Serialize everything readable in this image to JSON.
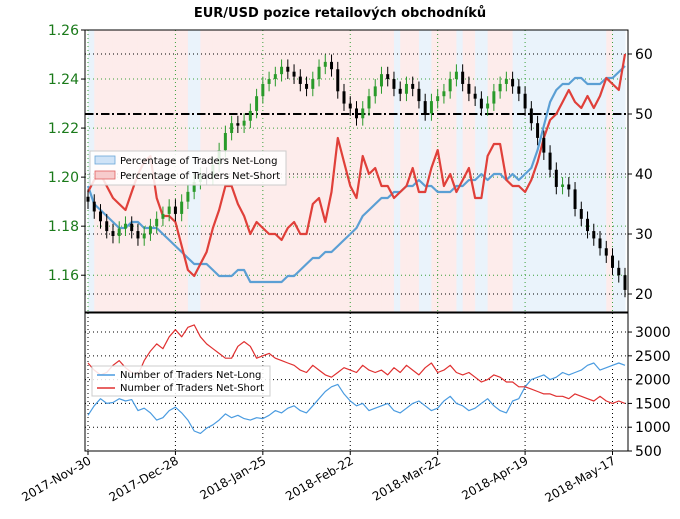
{
  "chart_data": [
    {
      "type": "candlestick+line",
      "title": "EUR/USD pozice retailových obchodníků",
      "x_tick_labels": [
        "2017-Nov-30",
        "2017-Dec-28",
        "2018-Jan-25",
        "2018-Feb-22",
        "2018-Mar-22",
        "2018-Apr-19",
        "2018-May-17"
      ],
      "left_axis": {
        "ticks": [
          "1.26",
          "1.24",
          "1.22",
          "1.20",
          "1.18",
          "1.16"
        ],
        "ylim": [
          1.145,
          1.26
        ]
      },
      "right_axis": {
        "ticks": [
          "60",
          "50",
          "40",
          "30",
          "20"
        ],
        "ylim": [
          17,
          64
        ]
      },
      "legend": {
        "position": "upper-left",
        "entries": [
          "Percentage of Traders Net-Long",
          "Percentage of Traders Net-Short"
        ]
      },
      "price_series": {
        "name": "EUR/USD",
        "values": [
          1.19,
          1.186,
          1.182,
          1.178,
          1.176,
          1.179,
          1.181,
          1.178,
          1.175,
          1.177,
          1.18,
          1.183,
          1.185,
          1.188,
          1.185,
          1.19,
          1.194,
          1.198,
          1.201,
          1.2,
          1.205,
          1.211,
          1.218,
          1.222,
          1.221,
          1.223,
          1.227,
          1.233,
          1.238,
          1.24,
          1.242,
          1.245,
          1.243,
          1.241,
          1.238,
          1.236,
          1.24,
          1.245,
          1.247,
          1.244,
          1.235,
          1.23,
          1.228,
          1.224,
          1.228,
          1.233,
          1.237,
          1.242,
          1.24,
          1.236,
          1.234,
          1.238,
          1.236,
          1.231,
          1.226,
          1.231,
          1.233,
          1.235,
          1.24,
          1.243,
          1.238,
          1.234,
          1.232,
          1.228,
          1.23,
          1.235,
          1.238,
          1.24,
          1.237,
          1.234,
          1.228,
          1.222,
          1.216,
          1.21,
          1.203,
          1.196,
          1.197,
          1.195,
          1.187,
          1.183,
          1.178,
          1.175,
          1.171,
          1.168,
          1.163,
          1.16,
          1.154
        ]
      },
      "net_long_pct": {
        "values": [
          38,
          35,
          34,
          33,
          32,
          31,
          31,
          32,
          32,
          31,
          31,
          31,
          30,
          29,
          28,
          27,
          26,
          25,
          25,
          25,
          24,
          23,
          23,
          23,
          24,
          24,
          22,
          22,
          22,
          22,
          22,
          22,
          23,
          23,
          24,
          25,
          26,
          26,
          27,
          27,
          28,
          29,
          30,
          31,
          33,
          34,
          35,
          36,
          36,
          37,
          37,
          38,
          38,
          39,
          38,
          38,
          37,
          37,
          37,
          38,
          38,
          39,
          39,
          40,
          39,
          40,
          40,
          39,
          40,
          39,
          40,
          41,
          44,
          48,
          52,
          54,
          55,
          55,
          56,
          56,
          55,
          55,
          55,
          56,
          56,
          57,
          58
        ]
      },
      "net_short_pct": {
        "values": [
          37,
          39,
          40,
          38,
          36,
          35,
          34,
          37,
          40,
          42,
          43,
          36,
          33,
          33,
          32,
          28,
          24,
          23,
          25,
          27,
          31,
          34,
          38,
          38,
          35,
          33,
          30,
          32,
          31,
          30,
          30,
          29,
          31,
          32,
          30,
          30,
          35,
          36,
          32,
          37,
          46,
          42,
          38,
          36,
          43,
          40,
          41,
          38,
          38,
          36,
          37,
          38,
          41,
          37,
          37,
          41,
          44,
          38,
          40,
          37,
          39,
          41,
          36,
          36,
          43,
          45,
          45,
          39,
          38,
          38,
          37,
          39,
          42,
          46,
          49,
          50,
          52,
          54,
          52,
          51,
          53,
          51,
          53,
          56,
          55,
          54,
          60
        ]
      }
    },
    {
      "type": "line",
      "legend": {
        "position": "left",
        "entries": [
          "Number of Traders Net-Long",
          "Number of Traders Net-Short"
        ]
      },
      "y_ticks": [
        "3000",
        "2500",
        "2000",
        "1500",
        "1000",
        "500"
      ],
      "ylim": [
        500,
        3400
      ],
      "series": [
        {
          "name": "Number of Traders Net-Long",
          "values": [
            1250,
            1450,
            1600,
            1500,
            1520,
            1600,
            1550,
            1580,
            1350,
            1400,
            1300,
            1150,
            1200,
            1350,
            1420,
            1300,
            1150,
            920,
            870,
            980,
            1050,
            1150,
            1280,
            1200,
            1250,
            1180,
            1150,
            1200,
            1180,
            1250,
            1350,
            1300,
            1400,
            1450,
            1350,
            1300,
            1450,
            1600,
            1750,
            1850,
            1900,
            1700,
            1550,
            1450,
            1500,
            1350,
            1400,
            1450,
            1500,
            1350,
            1300,
            1400,
            1500,
            1550,
            1450,
            1350,
            1400,
            1550,
            1650,
            1500,
            1450,
            1350,
            1400,
            1500,
            1600,
            1450,
            1350,
            1300,
            1550,
            1600,
            1850,
            2000,
            2050,
            2100,
            2000,
            2050,
            2150,
            2100,
            2150,
            2200,
            2300,
            2350,
            2200,
            2250,
            2300,
            2350,
            2300
          ]
        },
        {
          "name": "Number of Traders Net-Short",
          "values": [
            2350,
            2200,
            2100,
            2150,
            2300,
            2400,
            2250,
            2150,
            2100,
            2400,
            2600,
            2750,
            2650,
            2900,
            3050,
            2900,
            3100,
            3150,
            2900,
            2750,
            2650,
            2550,
            2450,
            2450,
            2700,
            2800,
            2700,
            2450,
            2500,
            2550,
            2450,
            2400,
            2350,
            2300,
            2200,
            2150,
            2300,
            2200,
            2100,
            2050,
            2150,
            2250,
            2200,
            2150,
            2300,
            2200,
            2150,
            2200,
            2100,
            2250,
            2150,
            2300,
            2200,
            2100,
            2250,
            2350,
            2150,
            2200,
            2300,
            2150,
            2100,
            2150,
            2050,
            1950,
            2000,
            2100,
            2050,
            1950,
            1950,
            1850,
            1850,
            1800,
            1750,
            1700,
            1700,
            1650,
            1650,
            1600,
            1700,
            1650,
            1600,
            1550,
            1650,
            1550,
            1500,
            1550,
            1500
          ]
        }
      ]
    }
  ]
}
